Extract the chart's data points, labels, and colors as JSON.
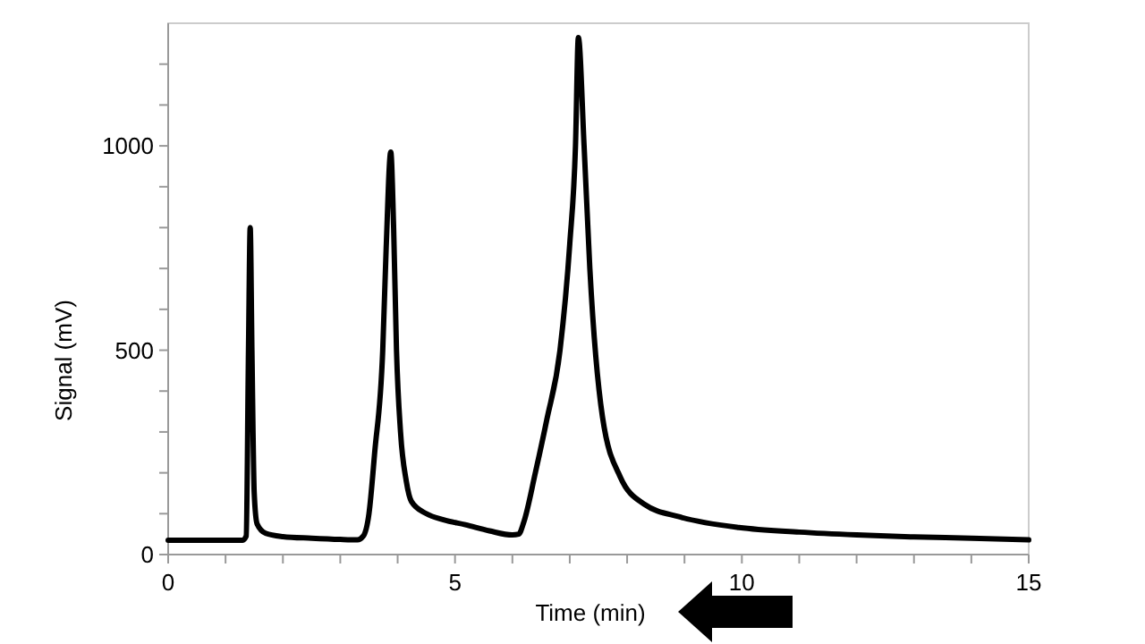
{
  "chart_data": {
    "type": "line",
    "xlabel": "Time (min)",
    "ylabel": "Signal (mV)",
    "xlim": [
      0,
      15
    ],
    "ylim": [
      0,
      1300
    ],
    "xticks": [
      0,
      {
        "value": 1,
        "label": null
      },
      {
        "value": 2,
        "label": null
      },
      {
        "value": 3,
        "label": null
      },
      {
        "value": 4,
        "label": null
      },
      5,
      {
        "value": 6,
        "label": null
      },
      {
        "value": 7,
        "label": null
      },
      {
        "value": 8,
        "label": null
      },
      {
        "value": 9,
        "label": null
      },
      10,
      {
        "value": 11,
        "label": null
      },
      {
        "value": 12,
        "label": null
      },
      {
        "value": 13,
        "label": null
      },
      {
        "value": 14,
        "label": null
      },
      15
    ],
    "yticks": [
      0,
      {
        "value": 100,
        "label": null
      },
      {
        "value": 200,
        "label": null
      },
      {
        "value": 300,
        "label": null
      },
      {
        "value": 400,
        "label": null
      },
      500,
      {
        "value": 600,
        "label": null
      },
      {
        "value": 700,
        "label": null
      },
      {
        "value": 800,
        "label": null
      },
      {
        "value": 900,
        "label": null
      },
      1000,
      {
        "value": 1100,
        "label": null
      },
      {
        "value": 1200,
        "label": null
      }
    ],
    "marker": "none",
    "line_style": "solid",
    "series": [
      {
        "color": "#000000",
        "x": [
          0,
          0.6,
          1.3,
          1.36,
          1.4,
          1.43,
          1.46,
          1.5,
          1.55,
          1.7,
          2,
          2.5,
          3,
          3.3,
          3.4,
          3.5,
          3.6,
          3.74,
          3.8,
          3.88,
          3.93,
          3.98,
          4.05,
          4.15,
          4.24,
          4.5,
          4.8,
          5.18,
          5.6,
          6,
          6.11,
          6.2,
          6.4,
          6.6,
          6.83,
          7.0,
          7.1,
          7.15,
          7.25,
          7.35,
          7.57,
          7.88,
          8.3,
          8.92,
          9.95,
          11,
          12,
          13,
          14,
          15
        ],
        "values": [
          35,
          35,
          35,
          45,
          500,
          800,
          500,
          150,
          75,
          52,
          44,
          40,
          37,
          36,
          45,
          100,
          250,
          500,
          750,
          985,
          800,
          500,
          300,
          180,
          130,
          100,
          85,
          73,
          58,
          48,
          50,
          80,
          200,
          330,
          500,
          760,
          1000,
          1265,
          1000,
          700,
          337,
          190,
          123,
          92,
          66,
          55,
          48,
          43,
          40,
          36
        ]
      }
    ]
  }
}
